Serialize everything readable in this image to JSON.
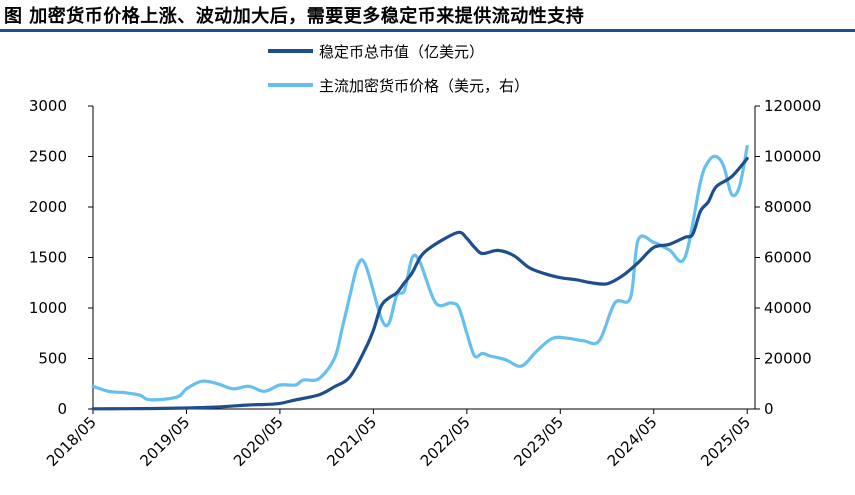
{
  "title": "图 加密货币价格上涨、波动加大后，需要更多稳定币来提供流动性支持",
  "colors": {
    "title_rule": "#1f4e8c",
    "series_left": "#1f4e8c",
    "series_right": "#66c0ee"
  },
  "chart_data": {
    "type": "line",
    "title": "图 加密货币价格上涨、波动加大后，需要更多稳定币来提供流动性支持",
    "legend_placement": "top-center",
    "grid": false,
    "x_tick_labels": [
      "2018/05",
      "2019/05",
      "2020/05",
      "2021/05",
      "2022/05",
      "2023/05",
      "2024/05",
      "2025/05"
    ],
    "x_range": [
      "2018/05",
      "2025/06"
    ],
    "y_left": {
      "ticks": [
        0,
        500,
        1000,
        1500,
        2000,
        2500,
        3000
      ],
      "range": [
        0,
        3000
      ]
    },
    "y_right": {
      "ticks": [
        0,
        20000,
        40000,
        60000,
        80000,
        100000,
        120000
      ],
      "range": [
        0,
        120000
      ]
    },
    "series": [
      {
        "name": "稳定币总市值（亿美元）",
        "axis": "left",
        "color": "#1f4e8c",
        "points": [
          [
            "2018/05",
            2
          ],
          [
            "2018/09",
            3
          ],
          [
            "2019/01",
            5
          ],
          [
            "2019/05",
            10
          ],
          [
            "2019/09",
            20
          ],
          [
            "2020/01",
            40
          ],
          [
            "2020/03",
            45
          ],
          [
            "2020/05",
            55
          ],
          [
            "2020/07",
            90
          ],
          [
            "2020/10",
            140
          ],
          [
            "2020/12",
            220
          ],
          [
            "2021/02",
            320
          ],
          [
            "2021/04",
            600
          ],
          [
            "2021/05",
            780
          ],
          [
            "2021/06",
            1020
          ],
          [
            "2021/07",
            1100
          ],
          [
            "2021/08",
            1150
          ],
          [
            "2021/09",
            1250
          ],
          [
            "2021/10",
            1350
          ],
          [
            "2021/11",
            1500
          ],
          [
            "2021/12",
            1580
          ],
          [
            "2022/02",
            1680
          ],
          [
            "2022/04",
            1750
          ],
          [
            "2022/05",
            1690
          ],
          [
            "2022/06",
            1600
          ],
          [
            "2022/07",
            1540
          ],
          [
            "2022/09",
            1570
          ],
          [
            "2022/11",
            1520
          ],
          [
            "2023/01",
            1400
          ],
          [
            "2023/03",
            1340
          ],
          [
            "2023/05",
            1300
          ],
          [
            "2023/07",
            1280
          ],
          [
            "2023/09",
            1250
          ],
          [
            "2023/11",
            1240
          ],
          [
            "2024/01",
            1320
          ],
          [
            "2024/03",
            1450
          ],
          [
            "2024/05",
            1600
          ],
          [
            "2024/07",
            1630
          ],
          [
            "2024/09",
            1700
          ],
          [
            "2024/10",
            1730
          ],
          [
            "2024/11",
            1960
          ],
          [
            "2024/12",
            2050
          ],
          [
            "2025/01",
            2200
          ],
          [
            "2025/03",
            2300
          ],
          [
            "2025/05",
            2480
          ]
        ]
      },
      {
        "name": "主流加密货币价格（美元，右）",
        "axis": "right",
        "color": "#66c0ee",
        "points": [
          [
            "2018/05",
            9000
          ],
          [
            "2018/07",
            7000
          ],
          [
            "2018/09",
            6500
          ],
          [
            "2018/11",
            5500
          ],
          [
            "2018/12",
            3800
          ],
          [
            "2019/02",
            3800
          ],
          [
            "2019/04",
            5000
          ],
          [
            "2019/05",
            8000
          ],
          [
            "2019/07",
            11000
          ],
          [
            "2019/09",
            10000
          ],
          [
            "2019/11",
            8000
          ],
          [
            "2020/01",
            9000
          ],
          [
            "2020/03",
            7000
          ],
          [
            "2020/05",
            9500
          ],
          [
            "2020/07",
            9500
          ],
          [
            "2020/08",
            11500
          ],
          [
            "2020/10",
            12000
          ],
          [
            "2020/12",
            20000
          ],
          [
            "2021/01",
            32000
          ],
          [
            "2021/02",
            45000
          ],
          [
            "2021/03",
            57000
          ],
          [
            "2021/04",
            57000
          ],
          [
            "2021/06",
            36000
          ],
          [
            "2021/07",
            34000
          ],
          [
            "2021/08",
            45000
          ],
          [
            "2021/09",
            47000
          ],
          [
            "2021/10",
            60000
          ],
          [
            "2021/11",
            58000
          ],
          [
            "2022/01",
            42000
          ],
          [
            "2022/03",
            42000
          ],
          [
            "2022/04",
            40000
          ],
          [
            "2022/05",
            30000
          ],
          [
            "2022/06",
            21000
          ],
          [
            "2022/07",
            22000
          ],
          [
            "2022/08",
            21000
          ],
          [
            "2022/10",
            19500
          ],
          [
            "2022/12",
            17000
          ],
          [
            "2023/02",
            23000
          ],
          [
            "2023/04",
            28000
          ],
          [
            "2023/06",
            28000
          ],
          [
            "2023/08",
            27000
          ],
          [
            "2023/10",
            27000
          ],
          [
            "2023/12",
            42000
          ],
          [
            "2024/02",
            44000
          ],
          [
            "2024/03",
            67000
          ],
          [
            "2024/05",
            66000
          ],
          [
            "2024/07",
            63000
          ],
          [
            "2024/09",
            60000
          ],
          [
            "2024/11",
            90000
          ],
          [
            "2024/12",
            98000
          ],
          [
            "2025/01",
            100000
          ],
          [
            "2025/02",
            96000
          ],
          [
            "2025/03",
            85000
          ],
          [
            "2025/04",
            88000
          ],
          [
            "2025/05",
            104000
          ]
        ]
      }
    ]
  }
}
